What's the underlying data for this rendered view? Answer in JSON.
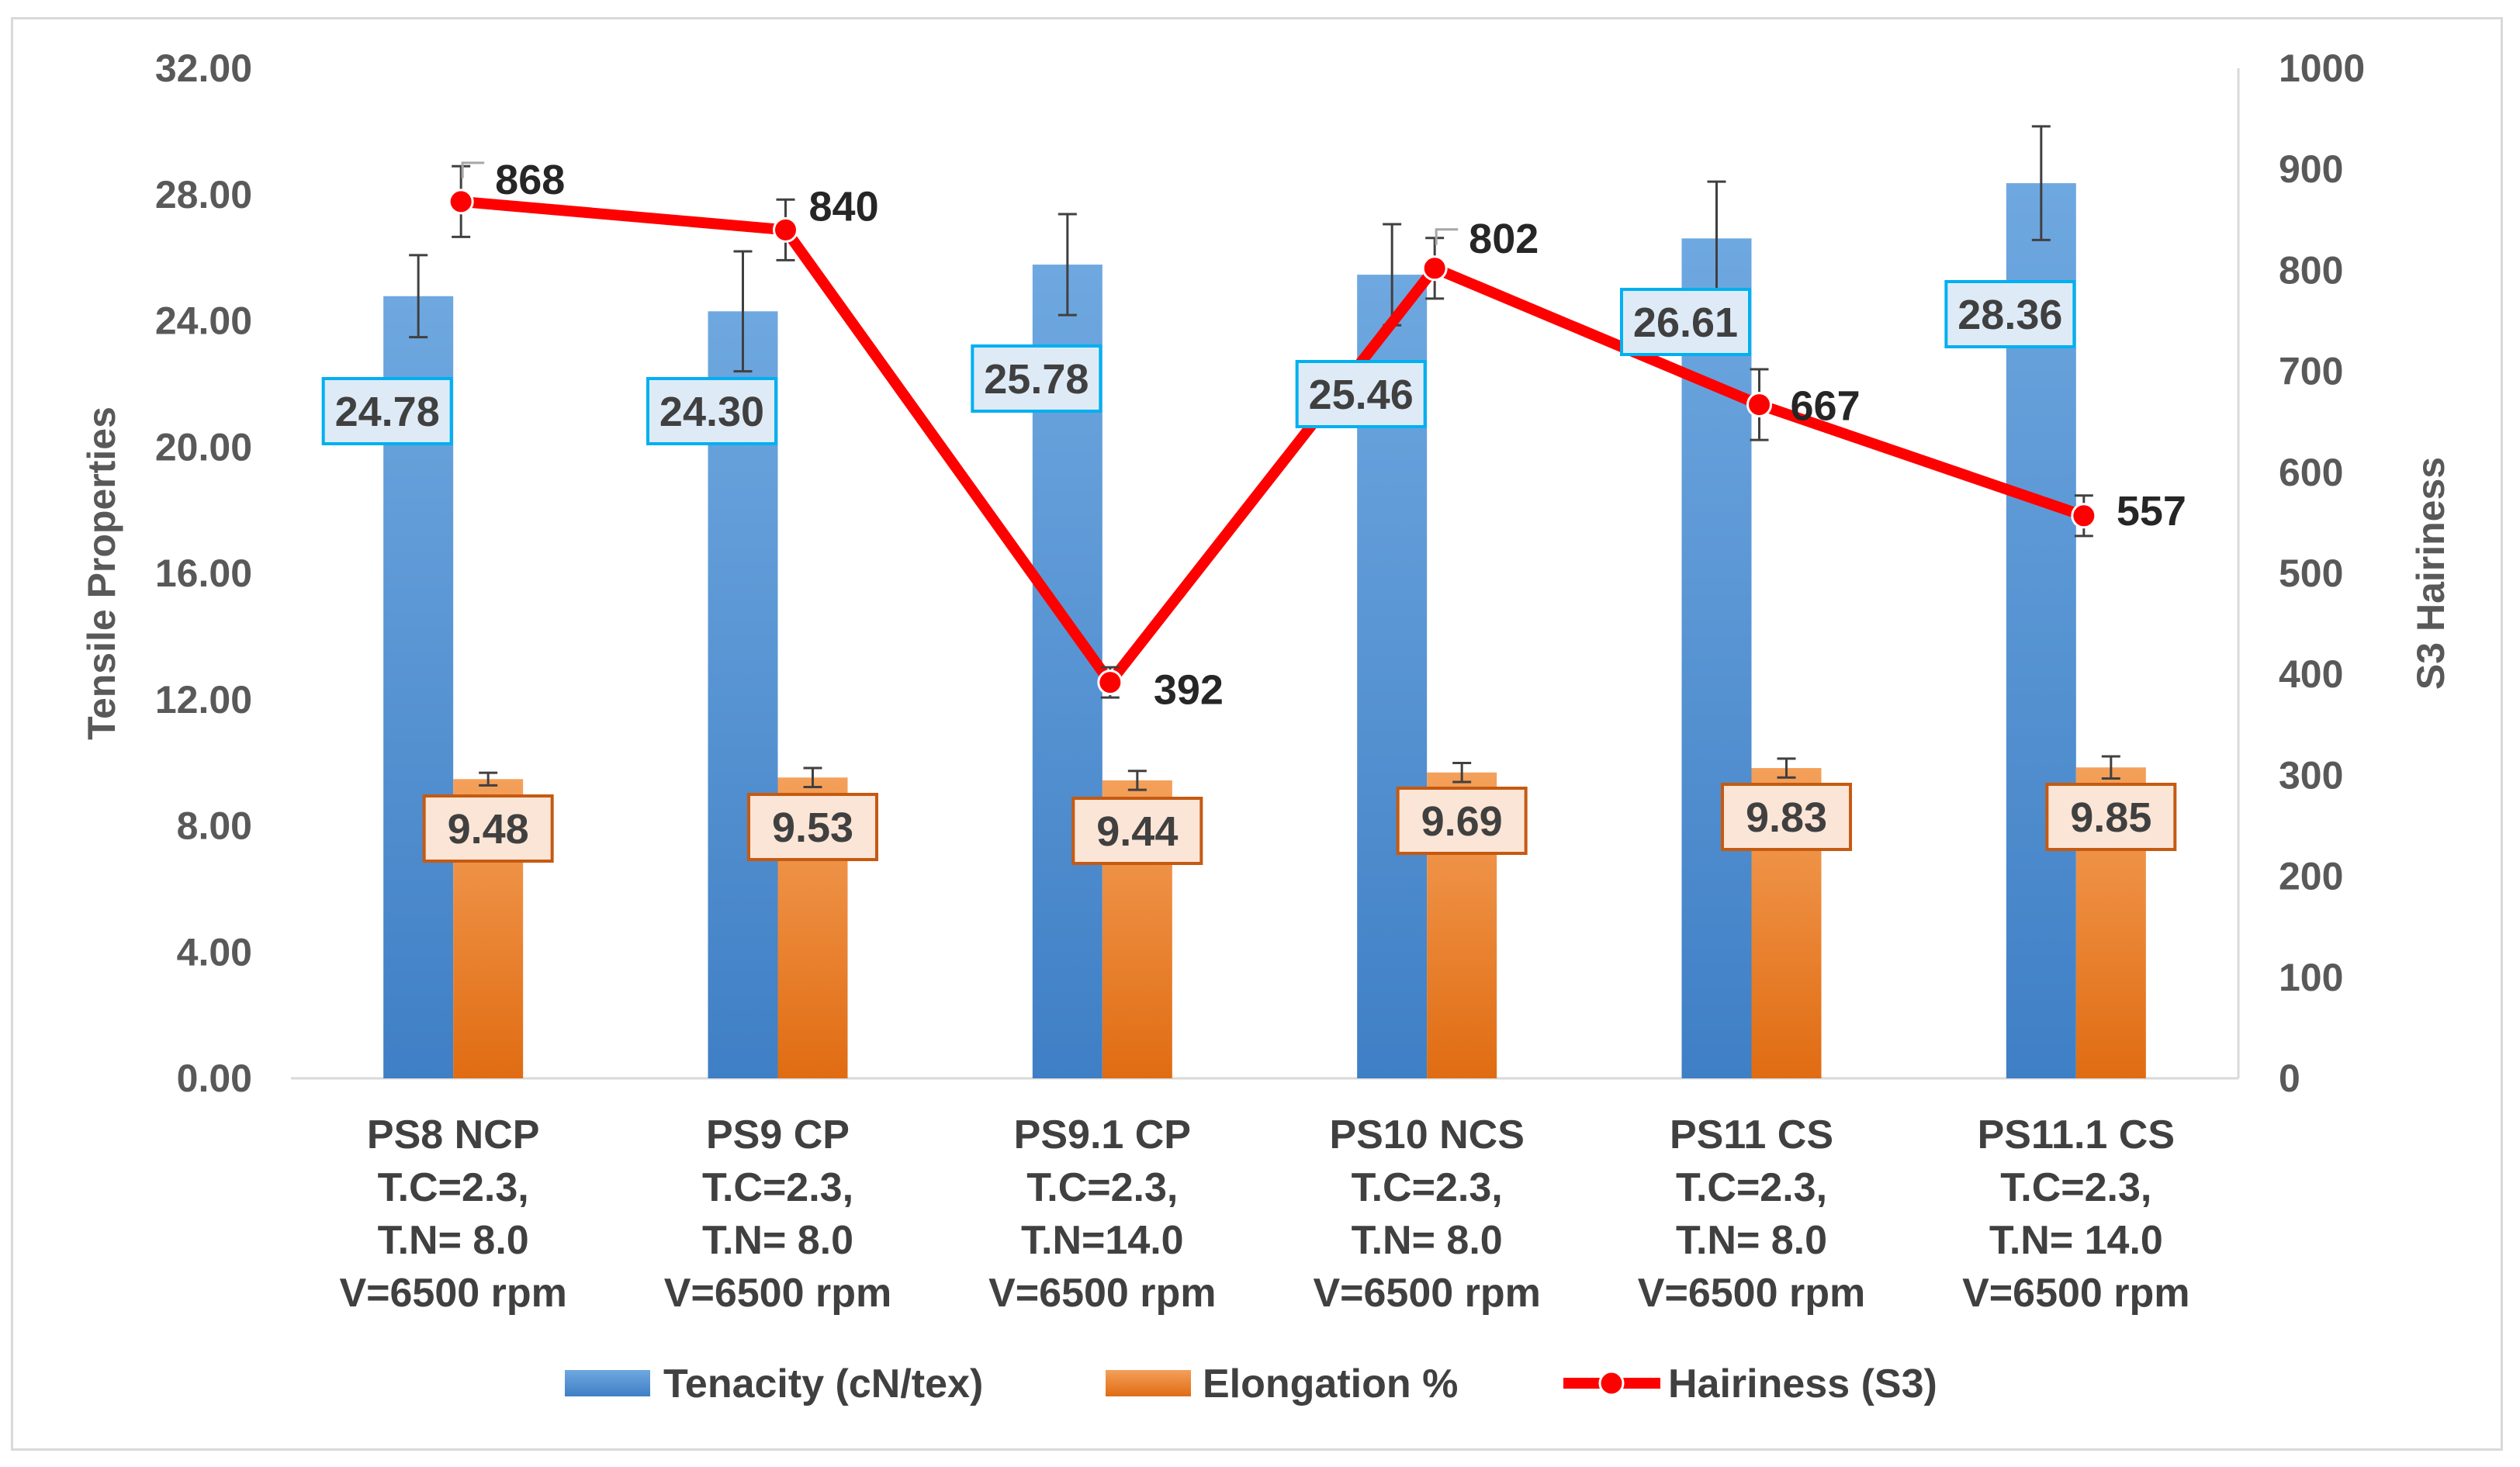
{
  "chart_data": {
    "type": "bar",
    "categories": [
      [
        "PS8 NCP",
        "T.C=2.3,",
        "T.N= 8.0",
        "V=6500 rpm"
      ],
      [
        "PS9 CP",
        "T.C=2.3,",
        "T.N= 8.0",
        "V=6500 rpm"
      ],
      [
        "PS9.1 CP",
        "T.C=2.3,",
        "T.N=14.0",
        "V=6500 rpm"
      ],
      [
        "PS10 NCS",
        "T.C=2.3,",
        "T.N= 8.0",
        "V=6500 rpm"
      ],
      [
        "PS11 CS",
        "T.C=2.3,",
        "T.N= 8.0",
        "V=6500 rpm"
      ],
      [
        "PS11.1 CS",
        "T.C=2.3,",
        "T.N= 14.0",
        "V=6500 rpm"
      ]
    ],
    "series": [
      {
        "name": "Tenacity (cN/tex)",
        "kind": "bar",
        "axis": "left",
        "values": [
          24.78,
          24.3,
          25.78,
          25.46,
          26.61,
          28.36
        ],
        "labels": [
          "24.78",
          "24.30",
          "25.78",
          "25.46",
          "26.61",
          "28.36"
        ],
        "error": [
          1.3,
          1.9,
          1.6,
          1.6,
          1.8,
          1.8
        ],
        "color_top": "#6fa8e0",
        "color_bottom": "#3f7fc5",
        "label_border": "#00b0f0",
        "label_fill": "#deebf7"
      },
      {
        "name": "Elongation %",
        "kind": "bar",
        "axis": "left",
        "values": [
          9.48,
          9.53,
          9.44,
          9.69,
          9.83,
          9.85
        ],
        "labels": [
          "9.48",
          "9.53",
          "9.44",
          "9.69",
          "9.83",
          "9.85"
        ],
        "error": [
          0.2,
          0.3,
          0.3,
          0.3,
          0.3,
          0.35
        ],
        "color_top": "#f4a05a",
        "color_bottom": "#e06c12",
        "label_border": "#c55a11",
        "label_fill": "#fbe5d6"
      },
      {
        "name": "Hairiness (S3)",
        "kind": "line",
        "axis": "right",
        "values": [
          868,
          840,
          392,
          802,
          667,
          557
        ],
        "labels": [
          "868",
          "840",
          "392",
          "802",
          "667",
          "557"
        ],
        "error": [
          35,
          30,
          15,
          30,
          35,
          20
        ],
        "color": "#ff0000"
      }
    ],
    "y_left": {
      "title": "Tensile Properties",
      "ylim": [
        0,
        32
      ],
      "ticks": [
        "0.00",
        "4.00",
        "8.00",
        "12.00",
        "16.00",
        "20.00",
        "24.00",
        "28.00",
        "32.00"
      ]
    },
    "y_right": {
      "title": "S3 Hairiness",
      "ylim": [
        0,
        1000
      ],
      "ticks": [
        "0",
        "100",
        "200",
        "300",
        "400",
        "500",
        "600",
        "700",
        "800",
        "900",
        "1000"
      ]
    },
    "legend": "bottom",
    "grid": false,
    "colors": {
      "axis": "#d9d9d9",
      "error": "#404040",
      "line": "#ff0000"
    }
  }
}
